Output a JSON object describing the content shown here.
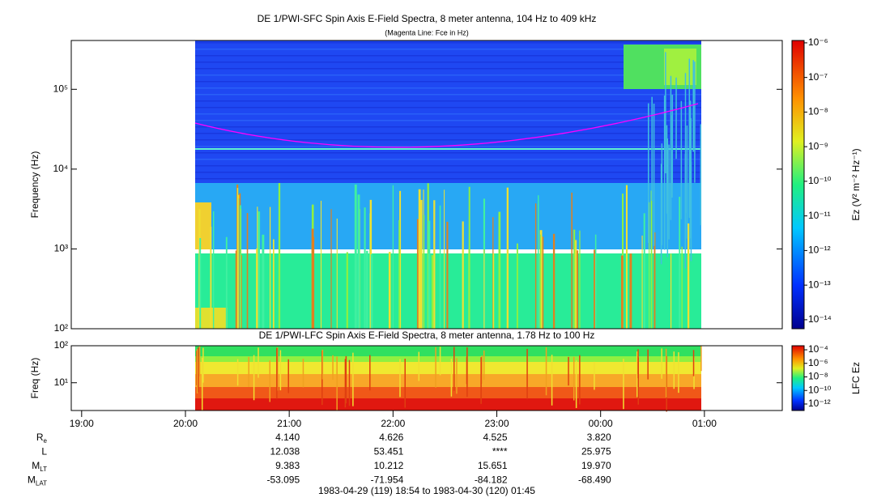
{
  "chart_data": [
    {
      "type": "spectrogram",
      "title": "DE 1/PWI-SFC  Spin Axis E-Field Spectra, 8 meter antenna, 104 Hz to 409 kHz",
      "subtitle": "(Magenta Line: Fce in Hz)",
      "y_label": "Frequency (Hz)",
      "log_y": true,
      "ylim": [
        100,
        409000
      ],
      "yticks": [
        {
          "value": 100,
          "label": "10²"
        },
        {
          "value": 1000,
          "label": "10³"
        },
        {
          "value": 10000,
          "label": "10⁴"
        },
        {
          "value": 100000,
          "label": "10⁵"
        }
      ],
      "colorbar": {
        "label": "Ez (V² m⁻² Hz⁻¹)",
        "zlim": [
          5.5e-15,
          1.17e-06
        ],
        "ticks": [
          {
            "value": 1e-06,
            "label": "10⁻⁶"
          },
          {
            "value": 1e-07,
            "label": "10⁻⁷"
          },
          {
            "value": 1e-08,
            "label": "10⁻⁸"
          },
          {
            "value": 1e-09,
            "label": "10⁻⁹"
          },
          {
            "value": 1e-10,
            "label": "10⁻¹⁰"
          },
          {
            "value": 1e-11,
            "label": "10⁻¹¹"
          },
          {
            "value": 1e-12,
            "label": "10⁻¹²"
          },
          {
            "value": 1e-13,
            "label": "10⁻¹³"
          },
          {
            "value": 1e-14,
            "label": "10⁻¹⁴"
          }
        ]
      }
    },
    {
      "type": "spectrogram",
      "title": "DE 1/PWI-LFC  Spin Axis E-Field Spectra, 8 meter antenna, 1.78 Hz to 100 Hz",
      "y_label": "Freq (Hz)",
      "log_y": true,
      "ylim": [
        1.78,
        100
      ],
      "yticks": [
        {
          "value": 10,
          "label": "10¹"
        },
        {
          "value": 100,
          "label": "10²"
        }
      ],
      "colorbar": {
        "label": "LFC Ez",
        "zlim": [
          1.1e-13,
          0.0004
        ],
        "ticks": [
          {
            "value": 0.0001,
            "label": "10⁻⁴"
          },
          {
            "value": 1e-06,
            "label": "10⁻⁶"
          },
          {
            "value": 1e-08,
            "label": "10⁻⁸"
          },
          {
            "value": 1e-10,
            "label": "10⁻¹⁰"
          },
          {
            "value": 1e-12,
            "label": "10⁻¹²"
          }
        ]
      }
    }
  ],
  "time_axis": {
    "xlim": [
      0,
      411
    ],
    "xticks": [
      {
        "value": 6,
        "label": "19:00"
      },
      {
        "value": 66,
        "label": "20:00"
      },
      {
        "value": 126,
        "label": "21:00"
      },
      {
        "value": 186,
        "label": "22:00"
      },
      {
        "value": 246,
        "label": "23:00"
      },
      {
        "value": 306,
        "label": "00:00"
      },
      {
        "value": 366,
        "label": "01:00"
      }
    ]
  },
  "ephemeris": [
    {
      "label": "R",
      "sub": "e",
      "values": [
        "4.140",
        "4.626",
        "4.525",
        "3.820"
      ]
    },
    {
      "label": "L",
      "values": [
        "12.038",
        "53.451",
        "****",
        "25.975"
      ]
    },
    {
      "label": "M",
      "sub": "LT",
      "values": [
        "9.383",
        "10.212",
        "15.651",
        "19.970"
      ]
    },
    {
      "label": "M",
      "sub": "LAT",
      "values": [
        "-53.095",
        "-71.954",
        "-84.182",
        "-68.490"
      ]
    }
  ],
  "footer": "1983-04-29 (119) 18:54 to 1983-04-30 (120) 01:45"
}
